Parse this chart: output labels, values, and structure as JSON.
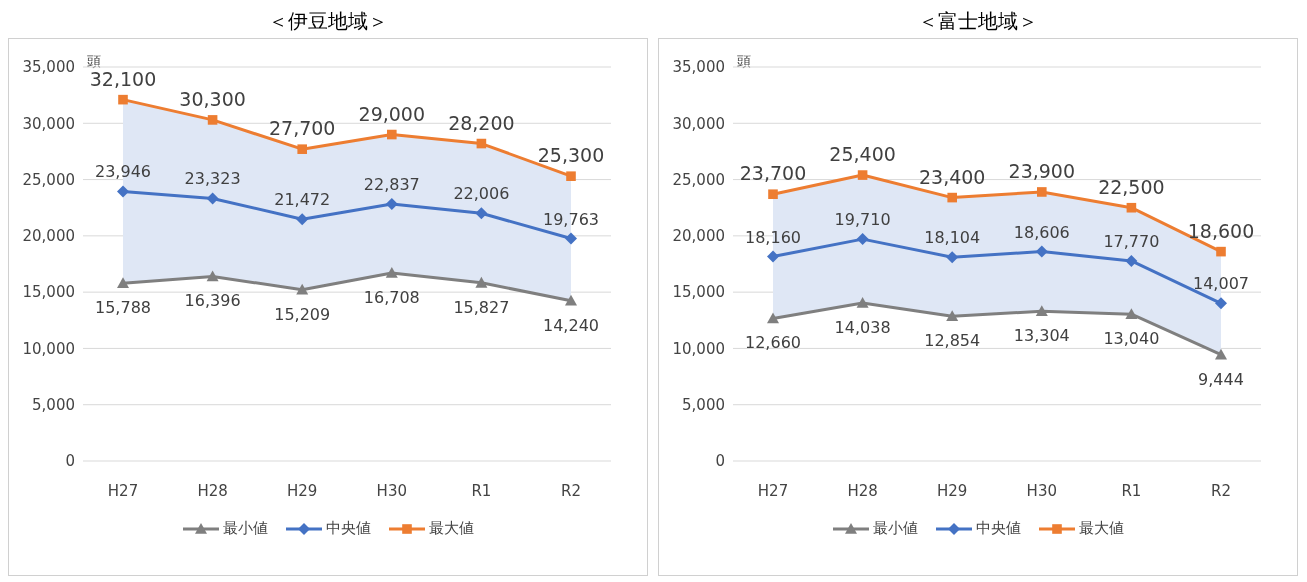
{
  "chart_data": [
    {
      "type": "line",
      "title": "＜伊豆地域＞",
      "ylabel": "頭",
      "categories": [
        "H27",
        "H28",
        "H29",
        "H30",
        "R1",
        "R2"
      ],
      "series": [
        {
          "name": "最小値",
          "color": "#7f7f7f",
          "marker": "triangle",
          "values": [
            15788,
            16396,
            15209,
            16708,
            15827,
            14240
          ],
          "value_labels": [
            "15,788",
            "16,396",
            "15,209",
            "16,708",
            "15,827",
            "14,240"
          ]
        },
        {
          "name": "中央値",
          "color": "#4472c4",
          "marker": "diamond",
          "values": [
            23946,
            23323,
            21472,
            22837,
            22006,
            19763
          ],
          "value_labels": [
            "23,946",
            "23,323",
            "21,472",
            "22,837",
            "22,006",
            "19,763"
          ],
          "lower": [
            15788,
            16396,
            15209,
            16708,
            15827,
            14240
          ],
          "upper": [
            32100,
            30300,
            27700,
            29000,
            28200,
            25300
          ]
        },
        {
          "name": "最大値",
          "color": "#ed7d31",
          "marker": "square",
          "values": [
            32100,
            30300,
            27700,
            29000,
            28200,
            25300
          ],
          "value_labels": [
            "32,100",
            "30,300",
            "27,700",
            "29,000",
            "28,200",
            "25,300"
          ]
        }
      ],
      "ylim": [
        0,
        35000
      ],
      "yticks": [
        {
          "value": 0,
          "label": "0"
        },
        {
          "value": 5000,
          "label": "5,000"
        },
        {
          "value": 10000,
          "label": "10,000"
        },
        {
          "value": 15000,
          "label": "15,000"
        },
        {
          "value": 20000,
          "label": "20,000"
        },
        {
          "value": 25000,
          "label": "25,000"
        },
        {
          "value": 30000,
          "label": "30,000"
        },
        {
          "value": 35000,
          "label": "35,000"
        }
      ],
      "grid": "y",
      "legend": "bottom"
    },
    {
      "type": "line",
      "title": "＜富士地域＞",
      "ylabel": "頭",
      "categories": [
        "H27",
        "H28",
        "H29",
        "H30",
        "R1",
        "R2"
      ],
      "series": [
        {
          "name": "最小値",
          "color": "#7f7f7f",
          "marker": "triangle",
          "values": [
            12660,
            14038,
            12854,
            13304,
            13040,
            9444
          ],
          "value_labels": [
            "12,660",
            "14,038",
            "12,854",
            "13,304",
            "13,040",
            "9,444"
          ]
        },
        {
          "name": "中央値",
          "color": "#4472c4",
          "marker": "diamond",
          "values": [
            18160,
            19710,
            18104,
            18606,
            17770,
            14007
          ],
          "value_labels": [
            "18,160",
            "19,710",
            "18,104",
            "18,606",
            "17,770",
            "14,007"
          ],
          "lower": [
            12660,
            14038,
            12854,
            13304,
            13040,
            9444
          ],
          "upper": [
            23700,
            25400,
            23400,
            23900,
            22500,
            18600
          ]
        },
        {
          "name": "最大値",
          "color": "#ed7d31",
          "marker": "square",
          "values": [
            23700,
            25400,
            23400,
            23900,
            22500,
            18600
          ],
          "value_labels": [
            "23,700",
            "25,400",
            "23,400",
            "23,900",
            "22,500",
            "18,600"
          ]
        }
      ],
      "ylim": [
        0,
        35000
      ],
      "yticks": [
        {
          "value": 0,
          "label": "0"
        },
        {
          "value": 5000,
          "label": "5,000"
        },
        {
          "value": 10000,
          "label": "10,000"
        },
        {
          "value": 15000,
          "label": "15,000"
        },
        {
          "value": 20000,
          "label": "20,000"
        },
        {
          "value": 25000,
          "label": "25,000"
        },
        {
          "value": 30000,
          "label": "30,000"
        },
        {
          "value": 35000,
          "label": "35,000"
        }
      ],
      "grid": "y",
      "legend": "bottom"
    }
  ]
}
